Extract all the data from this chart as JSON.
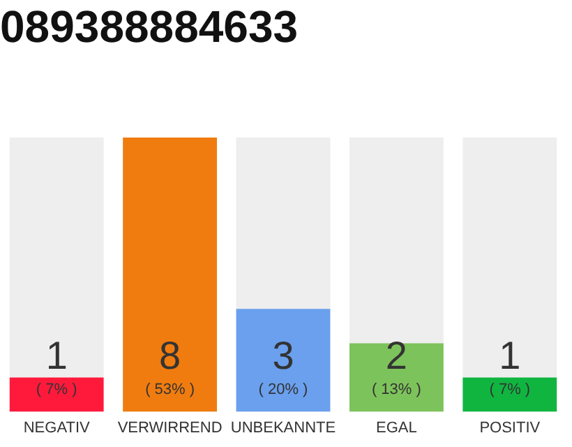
{
  "chart_data": {
    "type": "bar",
    "title": "089388884633",
    "categories": [
      "NEGATIV",
      "VERWIRREND",
      "UNBEKANNTE",
      "EGAL",
      "POSITIV"
    ],
    "values": [
      1,
      8,
      3,
      2,
      1
    ],
    "colors": [
      "#ff1a3c",
      "#f07c0f",
      "#6aa0ee",
      "#7dc35b",
      "#10b540"
    ],
    "value_labels": [
      "1\n( 7% )",
      "8\n( 53% )",
      "3\n( 20% )",
      "2\n( 13% )",
      "1\n( 7% )"
    ],
    "ylim": [
      0,
      8
    ],
    "tick_labels": "x",
    "grid": false,
    "legend": false
  }
}
